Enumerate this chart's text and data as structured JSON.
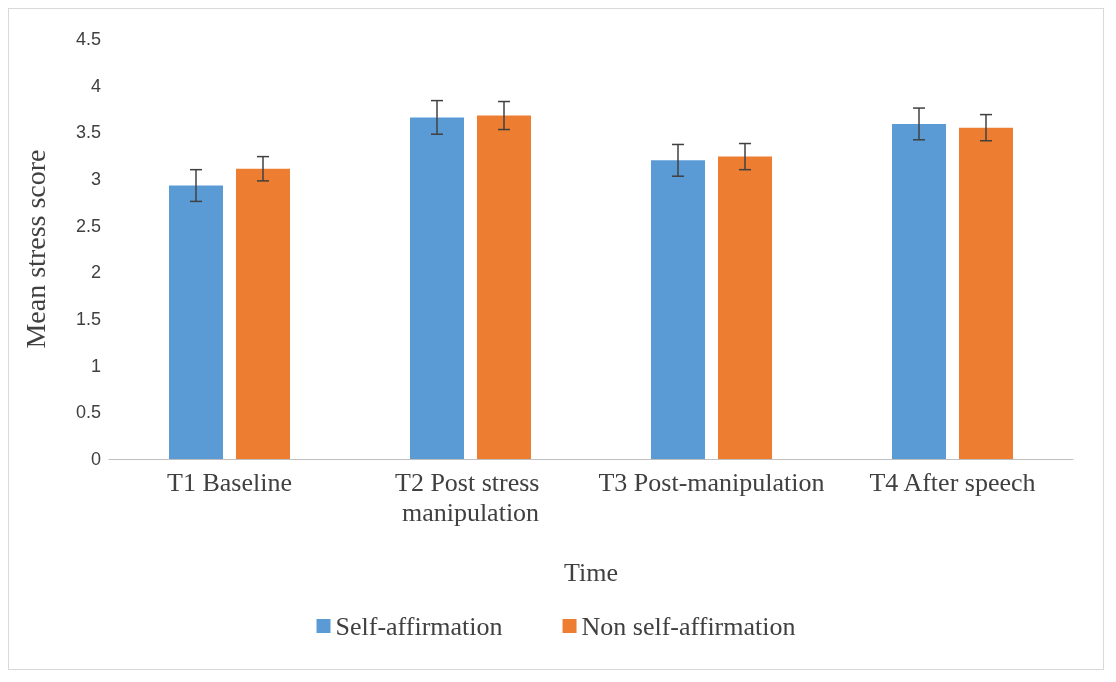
{
  "chart_data": {
    "type": "bar",
    "xlabel": "Time",
    "ylabel": "Mean stress score",
    "categories": [
      "T1 Baseline",
      "T2 Post stress manipulation",
      "T3 Post-manipulation",
      "T4 After speech"
    ],
    "series": [
      {
        "name": "Self-affirmation",
        "color": "#5b9bd5",
        "values": [
          2.93,
          3.66,
          3.2,
          3.59
        ],
        "errors": [
          0.17,
          0.18,
          0.17,
          0.17
        ]
      },
      {
        "name": "Non self-affirmation",
        "color": "#ed7d31",
        "values": [
          3.11,
          3.68,
          3.24,
          3.55
        ],
        "errors": [
          0.13,
          0.15,
          0.14,
          0.14
        ]
      }
    ],
    "ylim": [
      0,
      4.5
    ],
    "yticks": [
      0,
      0.5,
      1,
      1.5,
      2,
      2.5,
      3,
      3.5,
      4,
      4.5
    ],
    "grid": false,
    "legend": "bottom"
  }
}
